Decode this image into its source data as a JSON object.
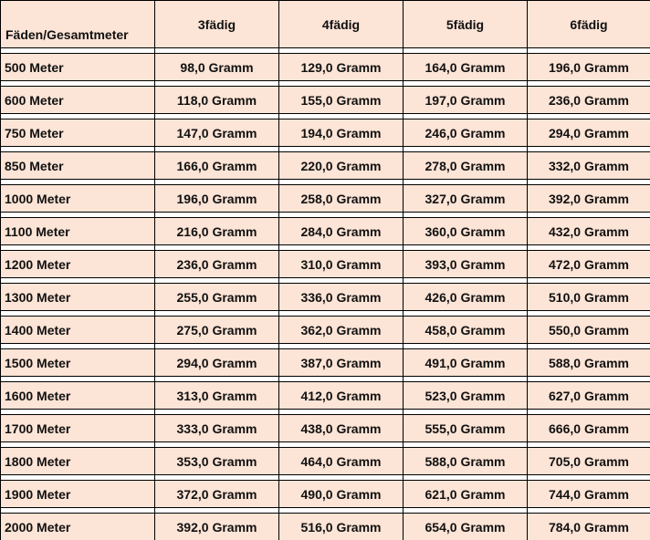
{
  "table": {
    "headers": [
      "Fäden/Gesamtmeter",
      "3fädig",
      "4fädig",
      "5fädig",
      "6fädig"
    ],
    "rows": [
      [
        "500 Meter",
        "98,0 Gramm",
        "129,0 Gramm",
        "164,0 Gramm",
        "196,0 Gramm"
      ],
      [
        "600 Meter",
        "118,0 Gramm",
        "155,0 Gramm",
        "197,0 Gramm",
        "236,0 Gramm"
      ],
      [
        "750 Meter",
        "147,0 Gramm",
        "194,0 Gramm",
        "246,0 Gramm",
        "294,0 Gramm"
      ],
      [
        "850 Meter",
        "166,0 Gramm",
        "220,0 Gramm",
        "278,0 Gramm",
        "332,0 Gramm"
      ],
      [
        "1000 Meter",
        "196,0 Gramm",
        "258,0 Gramm",
        "327,0 Gramm",
        "392,0 Gramm"
      ],
      [
        "1100 Meter",
        "216,0 Gramm",
        "284,0 Gramm",
        "360,0 Gramm",
        "432,0 Gramm"
      ],
      [
        "1200 Meter",
        "236,0 Gramm",
        "310,0 Gramm",
        "393,0 Gramm",
        "472,0 Gramm"
      ],
      [
        "1300 Meter",
        "255,0 Gramm",
        "336,0 Gramm",
        "426,0 Gramm",
        "510,0 Gramm"
      ],
      [
        "1400 Meter",
        "275,0 Gramm",
        "362,0 Gramm",
        "458,0 Gramm",
        "550,0 Gramm"
      ],
      [
        "1500 Meter",
        "294,0 Gramm",
        "387,0 Gramm",
        "491,0 Gramm",
        "588,0 Gramm"
      ],
      [
        "1600 Meter",
        "313,0 Gramm",
        "412,0 Gramm",
        "523,0 Gramm",
        "627,0 Gramm"
      ],
      [
        "1700 Meter",
        "333,0 Gramm",
        "438,0 Gramm",
        "555,0 Gramm",
        "666,0 Gramm"
      ],
      [
        "1800 Meter",
        "353,0 Gramm",
        "464,0 Gramm",
        "588,0 Gramm",
        "705,0 Gramm"
      ],
      [
        "1900 Meter",
        "372,0 Gramm",
        "490,0 Gramm",
        "621,0 Gramm",
        "744,0 Gramm"
      ],
      [
        "2000 Meter",
        "392,0 Gramm",
        "516,0 Gramm",
        "654,0 Gramm",
        "784,0 Gramm"
      ]
    ]
  },
  "colors": {
    "cell_background": "#fce4d6",
    "grid_lines": "#000000"
  }
}
